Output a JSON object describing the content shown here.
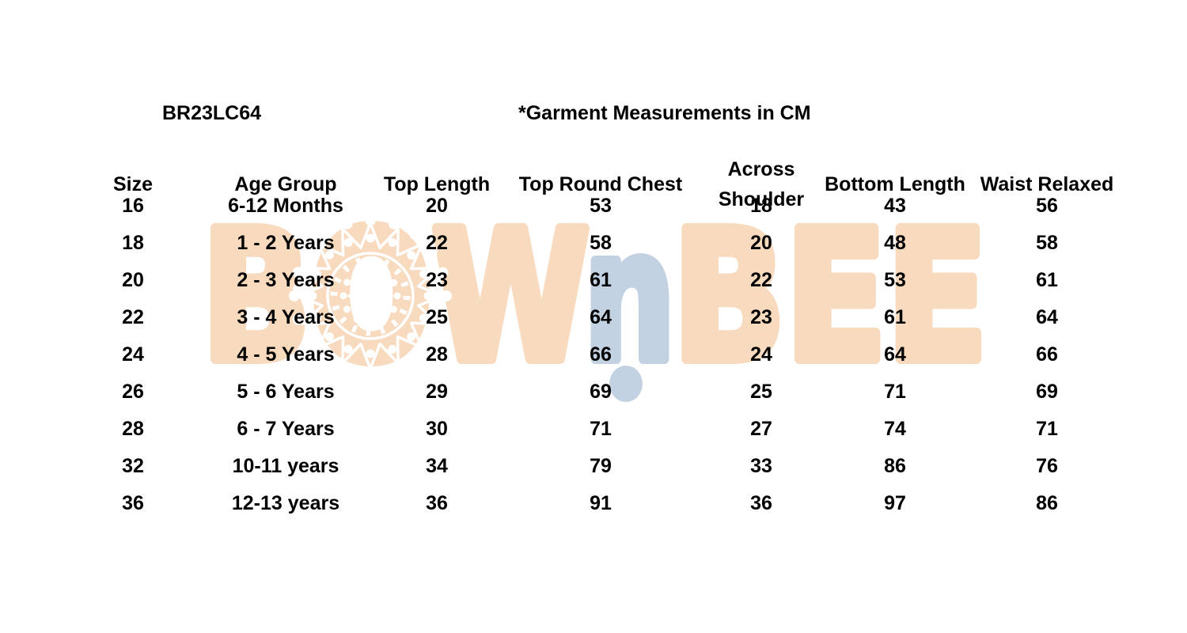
{
  "header": {
    "style_code": "BR23LC64",
    "note": "*Garment Measurements in CM"
  },
  "chart_data": {
    "type": "table",
    "title": "Garment Measurements in CM",
    "style_code": "BR23LC64",
    "columns": [
      "Size",
      "Age Group",
      "Top Length",
      "Top Round Chest",
      "Across Shoulder",
      "Bottom Length",
      "Waist Relaxed"
    ],
    "rows": [
      [
        "16",
        "6-12 Months",
        "20",
        "53",
        "18",
        "43",
        "56"
      ],
      [
        "18",
        "1 - 2 Years",
        "22",
        "58",
        "20",
        "48",
        "58"
      ],
      [
        "20",
        "2 - 3 Years",
        "23",
        "61",
        "22",
        "53",
        "61"
      ],
      [
        "22",
        "3 - 4 Years",
        "25",
        "64",
        "23",
        "61",
        "64"
      ],
      [
        "24",
        "4 - 5 Years",
        "28",
        "66",
        "24",
        "64",
        "66"
      ],
      [
        "26",
        "5 - 6 Years",
        "29",
        "69",
        "25",
        "71",
        "69"
      ],
      [
        "28",
        "6 - 7 Years",
        "30",
        "71",
        "27",
        "74",
        "71"
      ],
      [
        "32",
        "10-11 years",
        "34",
        "79",
        "33",
        "86",
        "76"
      ],
      [
        "36",
        "12-13 years",
        "36",
        "91",
        "36",
        "97",
        "86"
      ]
    ]
  },
  "watermark": {
    "brand_left": "BOW",
    "brand_mid": "n",
    "brand_right": "BEE",
    "colors": {
      "peach": "#F8DABE",
      "blue": "#C2D2E3"
    }
  }
}
